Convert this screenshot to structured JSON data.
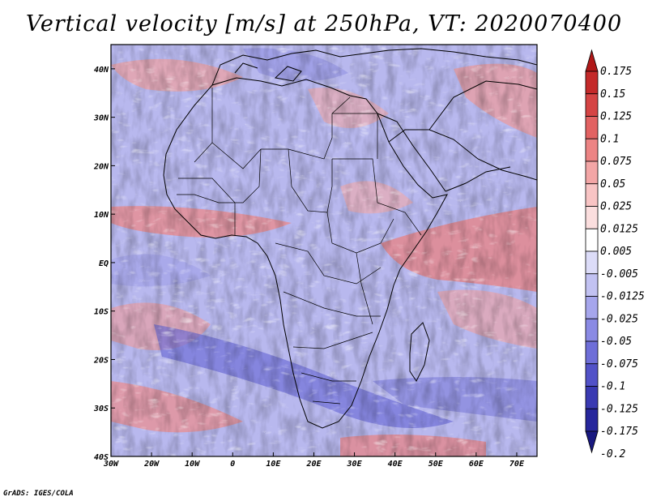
{
  "title": "Vertical velocity [m/s] at 250hPa, VT: 2020070400",
  "credit": "GrADS: IGES/COLA",
  "map": {
    "variable": "Vertical velocity",
    "units": "m/s",
    "level": "250hPa",
    "valid_time": "2020070400",
    "lon_range": [
      -30,
      75
    ],
    "lat_range": [
      -40,
      45
    ],
    "x_ticks": [
      "30W",
      "20W",
      "10W",
      "0",
      "10E",
      "20E",
      "30E",
      "40E",
      "50E",
      "60E",
      "70E"
    ],
    "y_ticks": [
      "40N",
      "30N",
      "20N",
      "10N",
      "EQ",
      "10S",
      "20S",
      "30S",
      "40S"
    ]
  },
  "colorbar": {
    "levels": [
      "0.175",
      "0.15",
      "0.125",
      "0.1",
      "0.075",
      "0.05",
      "0.025",
      "0.0125",
      "0.005",
      "-0.005",
      "-0.0125",
      "-0.025",
      "-0.05",
      "-0.075",
      "-0.1",
      "-0.125",
      "-0.175",
      "-0.2"
    ],
    "colors": [
      "#b01818",
      "#c42a2a",
      "#d54444",
      "#e26262",
      "#ec8484",
      "#f3a6a6",
      "#f8c4c4",
      "#fbdede",
      "#ffffff",
      "#dcdcf8",
      "#c2c2f2",
      "#a6a6ec",
      "#8a8ae4",
      "#6e6ed8",
      "#5252c8",
      "#3a3ab2",
      "#26269c",
      "#181880"
    ]
  },
  "icons": {
    "colorbar_top": "triangle-up",
    "colorbar_bottom": "triangle-down"
  }
}
